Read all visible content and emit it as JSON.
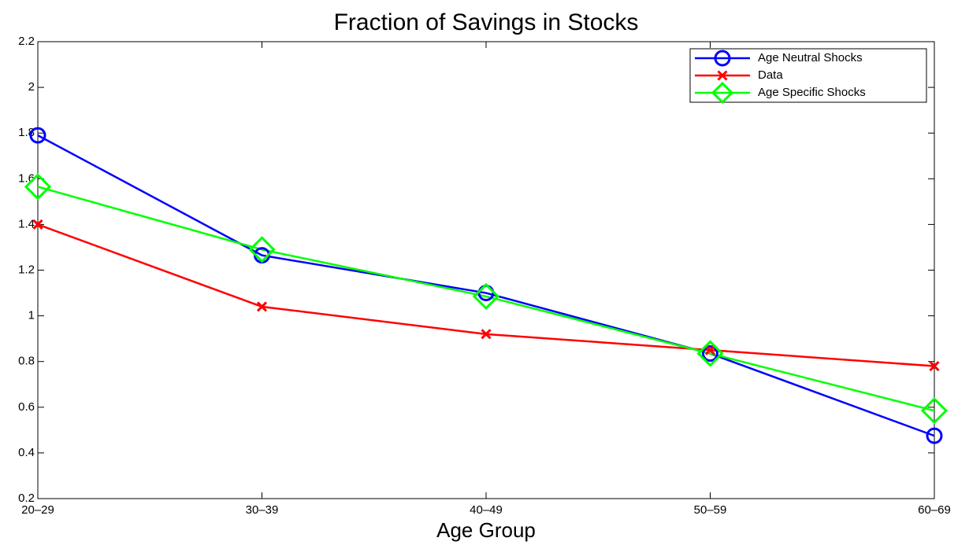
{
  "chart_data": {
    "type": "line",
    "title": "Fraction of Savings in Stocks",
    "x_label": "Age Group",
    "categories": [
      "20–29",
      "30–39",
      "40–49",
      "50–59",
      "60–69"
    ],
    "series": [
      {
        "name": "Age Neutral Shocks",
        "color": "#0000ff",
        "marker": "circle",
        "values": [
          1.79,
          1.265,
          1.1,
          0.835,
          0.475
        ]
      },
      {
        "name": "Data",
        "color": "#ff0000",
        "marker": "cross",
        "values": [
          1.4,
          1.04,
          0.92,
          0.85,
          0.78
        ]
      },
      {
        "name": "Age Specific Shocks",
        "color": "#00ff00",
        "marker": "diamond",
        "values": [
          1.565,
          1.29,
          1.085,
          0.835,
          0.585
        ]
      }
    ],
    "ylim": [
      0.2,
      2.2
    ],
    "yticks": [
      0.2,
      0.4,
      0.6,
      0.8,
      1,
      1.2,
      1.4,
      1.6,
      1.8,
      2,
      2.2
    ],
    "grid": false,
    "legend": "upper right"
  }
}
